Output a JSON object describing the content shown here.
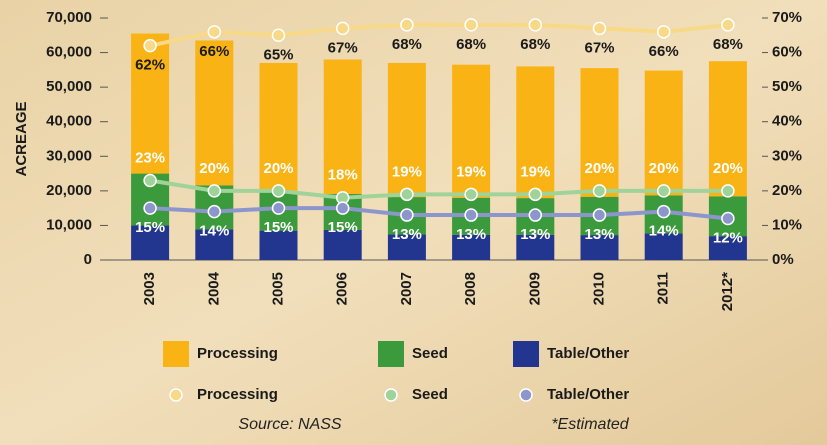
{
  "chart_data": {
    "type": "bar",
    "ylabel": "ACREAGE",
    "categories": [
      "2003",
      "2004",
      "2005",
      "2006",
      "2007",
      "2008",
      "2009",
      "2010",
      "2011",
      "2012*"
    ],
    "series": [
      {
        "name": "Table/Other",
        "type": "bar",
        "color": "#23368f",
        "values": [
          10000,
          8900,
          8500,
          8700,
          7400,
          7300,
          7300,
          7200,
          7700,
          6900
        ]
      },
      {
        "name": "Seed",
        "type": "bar",
        "color": "#3a9a3c",
        "values": [
          15000,
          12700,
          11400,
          10400,
          10800,
          10700,
          10600,
          11100,
          11000,
          11500
        ]
      },
      {
        "name": "Processing",
        "type": "bar",
        "color": "#f9b314",
        "values": [
          40500,
          41900,
          37100,
          38900,
          38800,
          38500,
          38100,
          37200,
          36100,
          39100
        ]
      },
      {
        "name": "Processing",
        "type": "line",
        "axis": "y2",
        "color": "#f8d987",
        "values": [
          62,
          66,
          65,
          67,
          68,
          68,
          68,
          67,
          66,
          68
        ],
        "value_labels": [
          "62%",
          "66%",
          "65%",
          "67%",
          "68%",
          "68%",
          "68%",
          "67%",
          "66%",
          "68%"
        ]
      },
      {
        "name": "Seed",
        "type": "line",
        "axis": "y2",
        "color": "#9fd39a",
        "values": [
          23,
          20,
          20,
          18,
          19,
          19,
          19,
          20,
          20,
          20
        ],
        "value_labels": [
          "23%",
          "20%",
          "20%",
          "18%",
          "19%",
          "19%",
          "19%",
          "20%",
          "20%",
          "20%"
        ]
      },
      {
        "name": "Table/Other",
        "type": "line",
        "axis": "y2",
        "color": "#8c96cc",
        "values": [
          15,
          14,
          15,
          15,
          13,
          13,
          13,
          13,
          14,
          12
        ],
        "value_labels": [
          "15%",
          "14%",
          "15%",
          "15%",
          "13%",
          "13%",
          "13%",
          "13%",
          "14%",
          "12%"
        ]
      }
    ],
    "ylim": [
      0,
      70000
    ],
    "yticks": [
      0,
      {
        "value": 10000,
        "label": "10,000"
      },
      {
        "value": 20000,
        "label": "20,000"
      },
      {
        "value": 30000,
        "label": "30,000"
      },
      {
        "value": 40000,
        "label": "40,000"
      },
      {
        "value": 50000,
        "label": "50,000"
      },
      {
        "value": 60000,
        "label": "60,000"
      },
      {
        "value": 70000,
        "label": "70,000"
      }
    ],
    "y2lim": [
      0,
      70
    ],
    "y2ticks": [
      {
        "value": 0,
        "label": "0%"
      },
      {
        "value": 10,
        "label": "10%"
      },
      {
        "value": 20,
        "label": "20%"
      },
      {
        "value": 30,
        "label": "30%"
      },
      {
        "value": 40,
        "label": "40%"
      },
      {
        "value": 50,
        "label": "50%"
      },
      {
        "value": 60,
        "label": "60%"
      },
      {
        "value": 70,
        "label": "70%"
      }
    ],
    "source": "Source: NASS",
    "footnote": "*Estimated"
  }
}
